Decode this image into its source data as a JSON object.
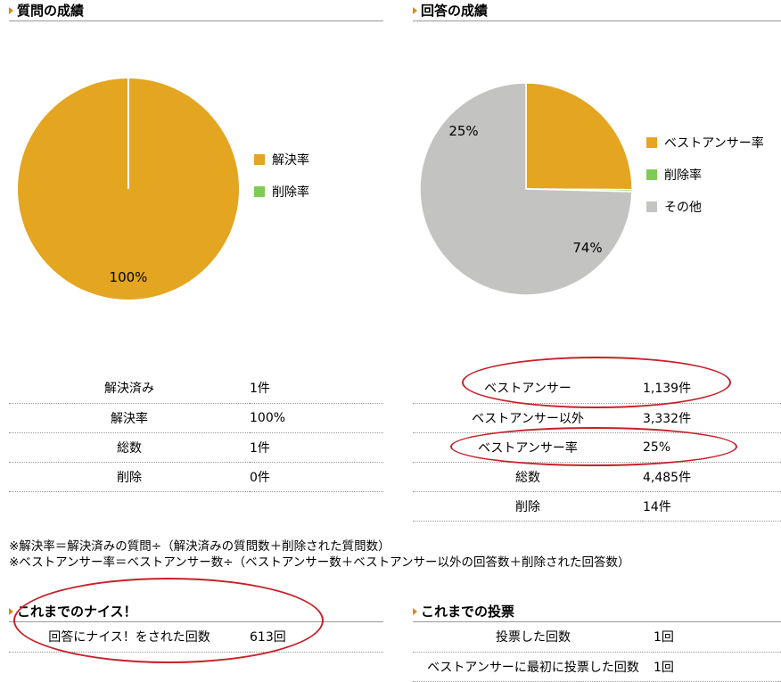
{
  "question_section": {
    "title": "質問の成績",
    "chart_data": {
      "type": "pie",
      "slices": [
        {
          "name": "解決率",
          "value": 100,
          "label": "100%",
          "color": "#e4a520"
        },
        {
          "name": "削除率",
          "value": 0,
          "label": "",
          "color": "#7fcc55"
        }
      ]
    },
    "stats": [
      {
        "key": "解決済み",
        "value": "1件"
      },
      {
        "key": "解決率",
        "value": "100%"
      },
      {
        "key": "総数",
        "value": "1件"
      },
      {
        "key": "削除",
        "value": "0件"
      }
    ]
  },
  "answer_section": {
    "title": "回答の成績",
    "chart_data": {
      "type": "pie",
      "slices": [
        {
          "name": "ベストアンサー率",
          "value": 25,
          "label": "25%",
          "color": "#e4a520"
        },
        {
          "name": "削除率",
          "value": 0.3,
          "label": "",
          "color": "#7fcc55"
        },
        {
          "name": "その他",
          "value": 74.3,
          "label": "74%",
          "color": "#c3c4c2"
        }
      ]
    },
    "stats": [
      {
        "key": "ベストアンサー",
        "value": "1,139件"
      },
      {
        "key": "ベストアンサー以外",
        "value": "3,332件"
      },
      {
        "key": "ベストアンサー率",
        "value": "25%"
      },
      {
        "key": "総数",
        "value": "4,485件"
      },
      {
        "key": "削除",
        "value": "14件"
      }
    ]
  },
  "notes": [
    "※解決率＝解決済みの質問÷（解決済みの質問数＋削除された質問数）",
    "※ベストアンサー率＝ベストアンサー数÷（ベストアンサー数＋ベストアンサー以外の回答数＋削除された回答数）"
  ],
  "nice_section": {
    "title": "これまでのナイス！",
    "stats": [
      {
        "key": "回答にナイス！をされた回数",
        "value": "613回"
      }
    ]
  },
  "vote_section": {
    "title": "これまでの投票",
    "stats": [
      {
        "key": "投票した回数",
        "value": "1回"
      },
      {
        "key": "ベストアンサーに最初に投票した回数",
        "value": "1回"
      }
    ]
  },
  "highlight_color": "#c8202a"
}
